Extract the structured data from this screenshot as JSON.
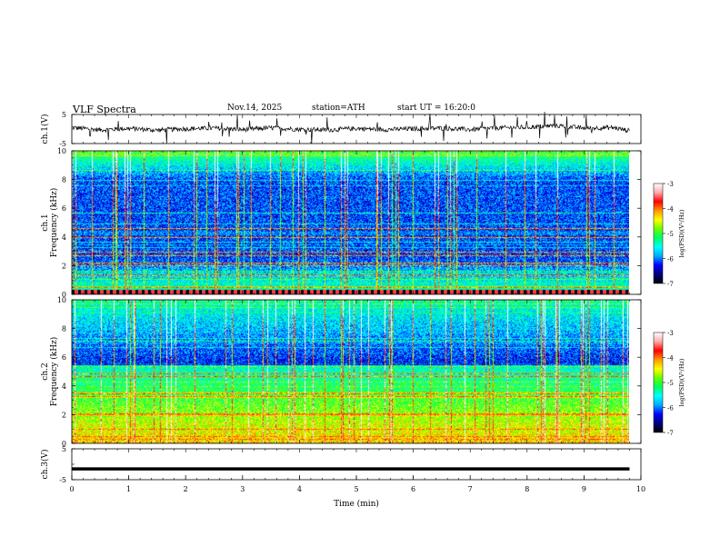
{
  "header": {
    "title": "VLF Spectra",
    "date": "Nov.14, 2025",
    "station": "station=ATH",
    "start": "start UT = 16:20:0"
  },
  "chart_data": [
    {
      "type": "line",
      "title": "",
      "ylabel": "ch.1(V)",
      "ylim": [
        -5,
        5
      ],
      "yticks": [
        "5",
        "-5"
      ],
      "x": [
        0,
        0.5,
        1,
        1.5,
        2,
        2.5,
        3,
        3.5,
        4,
        4.5,
        5,
        5.5,
        6,
        6.5,
        7,
        7.5,
        8,
        8.5,
        9,
        9.5,
        9.8
      ],
      "values": [
        0.5,
        -0.3,
        0.2,
        -0.4,
        0.1,
        0.3,
        -0.2,
        0.4,
        -0.1,
        -0.3,
        0.2,
        -0.2,
        0.1,
        0.3,
        -0.2,
        0.4,
        0.6,
        1.2,
        0.3,
        0.5,
        -0.6
      ],
      "color": "#000000"
    },
    {
      "type": "heatmap",
      "ylabel": "ch.1\nFrequency (kHz)",
      "yrange": [
        0,
        10
      ],
      "yticks": [
        "0",
        "2",
        "4",
        "6",
        "8",
        "10"
      ],
      "xrange": [
        0,
        9.8
      ],
      "colorbar": {
        "label": "log(PSD)(V²/Hz)",
        "range": [
          -7,
          -3
        ],
        "ticks": [
          "-3",
          "-4",
          "-5",
          "-6",
          "-7"
        ]
      }
    },
    {
      "type": "heatmap",
      "ylabel": "ch.2\nFrequency (kHz)",
      "yrange": [
        0,
        10
      ],
      "yticks": [
        "0",
        "2",
        "4",
        "6",
        "8",
        "10"
      ],
      "xrange": [
        0,
        9.8
      ],
      "colorbar": {
        "label": "log(PSD)(V²/Hz)",
        "range": [
          -7,
          -3
        ],
        "ticks": [
          "-3",
          "-4",
          "-5",
          "-6",
          "-7"
        ]
      }
    },
    {
      "type": "line",
      "ylabel": "ch.3(V)",
      "ylim": [
        -5,
        5
      ],
      "yticks": [
        "5",
        "-5"
      ],
      "x": [
        0,
        9.8
      ],
      "values": [
        -1.5,
        -1.5
      ],
      "color": "#000000"
    }
  ],
  "xaxis": {
    "label": "Time (min)",
    "ticks": [
      "0",
      "1",
      "2",
      "3",
      "4",
      "5",
      "6",
      "7",
      "8",
      "9",
      "10"
    ],
    "range": [
      0,
      10
    ]
  },
  "colormap": [
    "#000000",
    "#00007a",
    "#0000ff",
    "#00aaff",
    "#00ffff",
    "#00ff66",
    "#66ff00",
    "#ffff00",
    "#ff9900",
    "#ff0000",
    "#ffaaaa",
    "#ffffff"
  ]
}
